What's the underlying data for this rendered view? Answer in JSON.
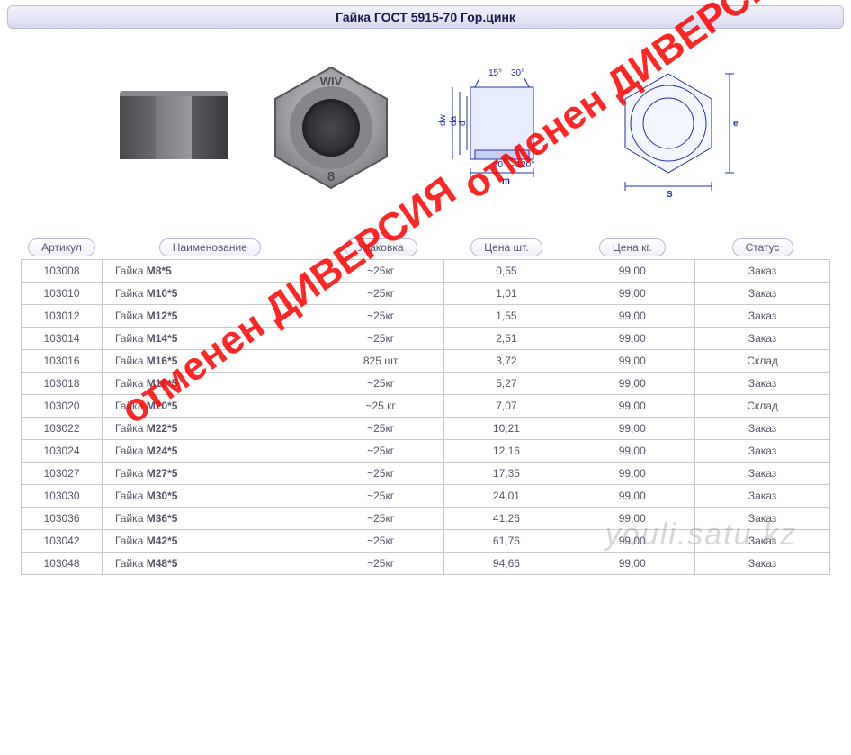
{
  "title": "Гайка ГОСТ 5915-70 Гор.цинк",
  "nut_marking_top": "WIV",
  "nut_marking_bottom": "8",
  "diagram": {
    "color": "#2030a0",
    "angle_top_1": "15°",
    "angle_top_2": "30°",
    "angle_bot_1": "90°",
    "angle_bot_2": "–120°",
    "dim_dw": "dw",
    "dim_da": "da",
    "dim_d": "d",
    "dim_m": "m",
    "dim_e": "e",
    "dim_s": "S"
  },
  "columns": [
    "Артикул",
    "Наименование",
    "Упаковка",
    "Цена шт.",
    "Цена кг.",
    "Статус"
  ],
  "name_prefix": "Гайка ",
  "rows": [
    {
      "art": "103008",
      "size": "M8*5",
      "pack": "~25кг",
      "p1": "0,55",
      "p2": "99,00",
      "status": "Заказ"
    },
    {
      "art": "103010",
      "size": "M10*5",
      "pack": "~25кг",
      "p1": "1,01",
      "p2": "99,00",
      "status": "Заказ"
    },
    {
      "art": "103012",
      "size": "M12*5",
      "pack": "~25кг",
      "p1": "1,55",
      "p2": "99,00",
      "status": "Заказ"
    },
    {
      "art": "103014",
      "size": "M14*5",
      "pack": "~25кг",
      "p1": "2,51",
      "p2": "99,00",
      "status": "Заказ"
    },
    {
      "art": "103016",
      "size": "M16*5",
      "pack": "825 шт",
      "p1": "3,72",
      "p2": "99,00",
      "status": "Склад"
    },
    {
      "art": "103018",
      "size": "M18*5",
      "pack": "~25кг",
      "p1": "5,27",
      "p2": "99,00",
      "status": "Заказ"
    },
    {
      "art": "103020",
      "size": "M20*5",
      "pack": "~25 кг",
      "p1": "7,07",
      "p2": "99,00",
      "status": "Склад"
    },
    {
      "art": "103022",
      "size": "M22*5",
      "pack": "~25кг",
      "p1": "10,21",
      "p2": "99,00",
      "status": "Заказ"
    },
    {
      "art": "103024",
      "size": "M24*5",
      "pack": "~25кг",
      "p1": "12,16",
      "p2": "99,00",
      "status": "Заказ"
    },
    {
      "art": "103027",
      "size": "M27*5",
      "pack": "~25кг",
      "p1": "17,35",
      "p2": "99,00",
      "status": "Заказ"
    },
    {
      "art": "103030",
      "size": "M30*5",
      "pack": "~25кг",
      "p1": "24,01",
      "p2": "99,00",
      "status": "Заказ"
    },
    {
      "art": "103036",
      "size": "M36*5",
      "pack": "~25кг",
      "p1": "41,26",
      "p2": "99,00",
      "status": "Заказ"
    },
    {
      "art": "103042",
      "size": "M42*5",
      "pack": "~25кг",
      "p1": "61,76",
      "p2": "99,00",
      "status": "Заказ"
    },
    {
      "art": "103048",
      "size": "M48*5",
      "pack": "~25кг",
      "p1": "94,66",
      "p2": "99,00",
      "status": "Заказ"
    }
  ],
  "watermark_diag": "отменен ДИВЕРСИЯ",
  "watermark_site": "youli.satu.kz",
  "colors": {
    "title_bg_top": "#f2f2fb",
    "title_bg_bot": "#d9d9f0",
    "title_border": "#bcbce0",
    "title_text": "#1a1a4a",
    "pill_border": "#b8b8d8",
    "cell_border": "#c9c9c9",
    "cell_text": "#555566",
    "watermark_red": "#ff0000",
    "watermark_gray": "rgba(140,140,140,0.35)",
    "diagram_blue": "#2030a0"
  }
}
